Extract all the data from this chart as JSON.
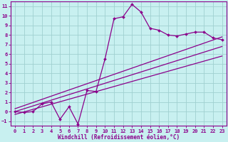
{
  "xlabel": "Windchill (Refroidissement éolien,°C)",
  "background_color": "#c8f0f0",
  "line_color": "#8b008b",
  "grid_color": "#a0d0d0",
  "x_data": [
    0,
    1,
    2,
    3,
    4,
    5,
    6,
    7,
    8,
    9,
    10,
    11,
    12,
    13,
    14,
    15,
    16,
    17,
    18,
    19,
    20,
    21,
    22,
    23
  ],
  "y_main": [
    0,
    -0.1,
    0,
    0.8,
    1.0,
    -0.8,
    0.5,
    -1.3,
    2.2,
    2.1,
    5.5,
    9.7,
    9.9,
    11.2,
    10.4,
    8.7,
    8.5,
    8.0,
    7.9,
    8.1,
    8.3,
    8.3,
    7.7,
    7.5
  ],
  "trend_lines": [
    {
      "x0": 0,
      "y0": -0.3,
      "x1": 23,
      "y1": 5.8
    },
    {
      "x0": 0,
      "y0": -0.0,
      "x1": 23,
      "y1": 6.8
    },
    {
      "x0": 0,
      "y0": 0.3,
      "x1": 23,
      "y1": 7.8
    }
  ],
  "xlim": [
    -0.5,
    23.5
  ],
  "ylim": [
    -1.5,
    11.5
  ],
  "xticks": [
    0,
    1,
    2,
    3,
    4,
    5,
    6,
    7,
    8,
    9,
    10,
    11,
    12,
    13,
    14,
    15,
    16,
    17,
    18,
    19,
    20,
    21,
    22,
    23
  ],
  "yticks": [
    -1,
    0,
    1,
    2,
    3,
    4,
    5,
    6,
    7,
    8,
    9,
    10,
    11
  ]
}
